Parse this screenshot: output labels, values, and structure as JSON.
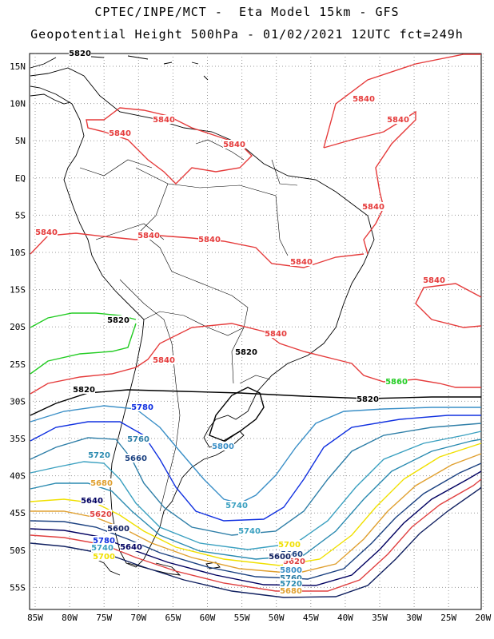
{
  "header": {
    "line1": "CPTEC/INPE/MCT -  Eta Model 15km - GFS",
    "line2": "Geopotential Height 500hPa - 01/02/2021 12UTC fct=249h"
  },
  "map": {
    "lon_labels": [
      "85W",
      "80W",
      "75W",
      "70W",
      "65W",
      "60W",
      "55W",
      "50W",
      "45W",
      "40W",
      "35W",
      "30W",
      "25W",
      "20W"
    ],
    "lat_labels": [
      "15N",
      "10N",
      "5N",
      "EQ",
      "5S",
      "10S",
      "15S",
      "20S",
      "25S",
      "30S",
      "35S",
      "40S",
      "45S",
      "50S",
      "55S"
    ],
    "contour_colors": {
      "5840": "#e53b3b",
      "5860": "#22cc22",
      "5820": "#000000",
      "5800": "#3a8fc7",
      "5780": "#1030e0",
      "5760": "#2f7fa8",
      "5740": "#3aa0c0",
      "5720": "#2a8ab0",
      "5700": "#f0e000",
      "5680": "#e0a030",
      "5660": "#1a4080",
      "5640": "#000060",
      "5620": "#e04040",
      "5600": "#102060"
    },
    "contour_labels": [
      {
        "text": "5840",
        "level": "5840"
      },
      {
        "text": "5840",
        "level": "5840"
      },
      {
        "text": "5840",
        "level": "5840"
      },
      {
        "text": "5840",
        "level": "5840"
      },
      {
        "text": "5840",
        "level": "5840"
      },
      {
        "text": "5840",
        "level": "5840"
      },
      {
        "text": "5840",
        "level": "5840"
      },
      {
        "text": "5840",
        "level": "5840"
      },
      {
        "text": "5840",
        "level": "5840"
      },
      {
        "text": "5840",
        "level": "5840"
      },
      {
        "text": "5840",
        "level": "5840"
      },
      {
        "text": "5840",
        "level": "5840"
      },
      {
        "text": "5840",
        "level": "5840"
      },
      {
        "text": "5860",
        "level": "5860"
      },
      {
        "text": "5820",
        "level": "5820"
      },
      {
        "text": "5820",
        "level": "5820"
      },
      {
        "text": "5820",
        "level": "5820"
      },
      {
        "text": "5820",
        "level": "5820"
      },
      {
        "text": "5820",
        "level": "5820"
      },
      {
        "text": "5800",
        "level": "5800"
      },
      {
        "text": "5780",
        "level": "5780"
      },
      {
        "text": "5760",
        "level": "5760"
      },
      {
        "text": "5740",
        "level": "5740"
      },
      {
        "text": "5740",
        "level": "5740"
      },
      {
        "text": "5720",
        "level": "5720"
      },
      {
        "text": "5700",
        "level": "5700"
      },
      {
        "text": "5680",
        "level": "5680"
      },
      {
        "text": "5660",
        "level": "5660"
      },
      {
        "text": "5640",
        "level": "5640"
      },
      {
        "text": "5620",
        "level": "5620"
      },
      {
        "text": "5600",
        "level": "5600"
      },
      {
        "text": "5800",
        "level": "5800"
      },
      {
        "text": "5780",
        "level": "5780"
      },
      {
        "text": "5760",
        "level": "5760"
      },
      {
        "text": "5740",
        "level": "5740"
      },
      {
        "text": "5720",
        "level": "5720"
      },
      {
        "text": "5700",
        "level": "5700"
      },
      {
        "text": "5680",
        "level": "5680"
      },
      {
        "text": "5660",
        "level": "5660"
      },
      {
        "text": "5640",
        "level": "5640"
      },
      {
        "text": "5620",
        "level": "5620"
      },
      {
        "text": "5600",
        "level": "5600"
      }
    ]
  }
}
